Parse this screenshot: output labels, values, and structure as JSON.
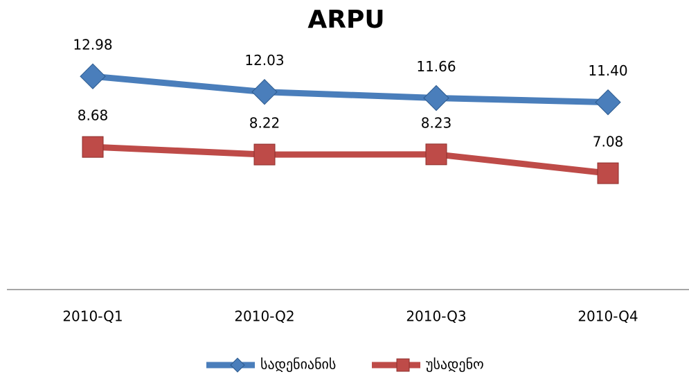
{
  "chart_data": {
    "type": "line",
    "title": "ARPU",
    "categories": [
      "2010-Q1",
      "2010-Q2",
      "2010-Q3",
      "2010-Q4"
    ],
    "series": [
      {
        "name": "სადენიანის",
        "color": "#4a7ebb",
        "marker": "diamond",
        "values": [
          12.98,
          12.03,
          11.66,
          11.4
        ],
        "value_labels": [
          "12.98",
          "12.03",
          "11.66",
          "11.40"
        ]
      },
      {
        "name": "უსადენო",
        "color": "#be4b48",
        "marker": "square",
        "values": [
          8.68,
          8.22,
          8.23,
          7.08
        ],
        "value_labels": [
          "8.68",
          "8.22",
          "8.23",
          "7.08"
        ]
      }
    ],
    "ylim": [
      0,
      14
    ],
    "legend": "bottom"
  }
}
